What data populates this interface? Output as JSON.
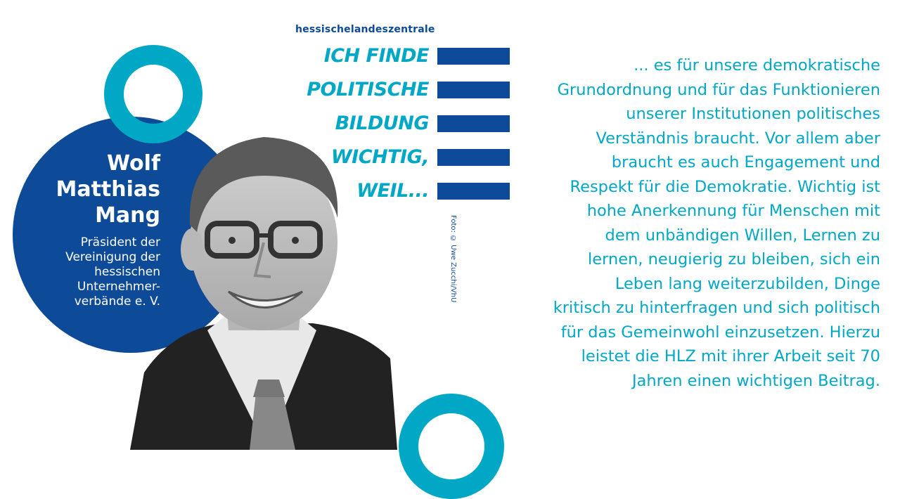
{
  "colors": {
    "dark_blue": "#0d4a97",
    "cyan": "#00a8c6",
    "background": "#ffffff"
  },
  "brand": "hessischelandeszentrale",
  "slogan": [
    "ICH FINDE",
    "POLITISCHE",
    "BILDUNG",
    "WICHTIG,",
    "WEIL..."
  ],
  "person": {
    "name_lines": [
      "Wolf",
      "Matthias",
      "Mang"
    ],
    "role_lines": [
      "Präsident der",
      "Vereinigung der",
      "hessischen",
      "Unternehmer-",
      "verbände e. V."
    ]
  },
  "photo_credit": "Foto: © Uwe Zucchi/VhU",
  "quote_lines": [
    "... es für unsere demokratische",
    "Grundordnung und für das Funktionieren",
    "unserer Institutionen politisches",
    "Verständnis braucht. Vor allem aber",
    "braucht es auch Engagement und",
    "Respekt für die Demokratie. Wichtig ist",
    "hohe Anerkennung für Menschen mit",
    "dem unbändigen Willen, Lernen zu",
    "lernen, neugierig zu bleiben, sich ein",
    "Leben lang weiterzubilden, Dinge",
    "kritisch zu hinterfragen und sich politisch",
    "für das Gemeinwohl einzusetzen. Hierzu",
    "leistet die HLZ mit ihrer Arbeit seit 70",
    "Jahren einen wichtigen Beitrag."
  ]
}
